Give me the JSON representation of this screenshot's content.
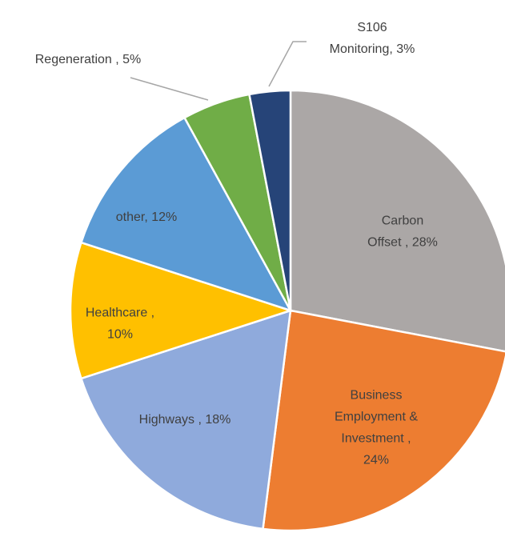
{
  "chart_data": {
    "type": "pie",
    "labels": [
      [
        "Carbon",
        "Offset , 28%"
      ],
      [
        "Business",
        "Employment &",
        "Investment ,",
        "24%"
      ],
      [
        "Highways , 18%"
      ],
      [
        "Healthcare ,",
        "10%"
      ],
      [
        "other, 12%"
      ],
      [
        "Regeneration , 5%"
      ],
      [
        "S106",
        "Monitoring, 3%"
      ]
    ],
    "values": [
      28,
      24,
      18,
      10,
      12,
      5,
      3
    ],
    "colors": [
      "#aba7a6",
      "#ed7d31",
      "#8faadc",
      "#ffc000",
      "#5b9bd5",
      "#70ad47",
      "#264478"
    ]
  }
}
